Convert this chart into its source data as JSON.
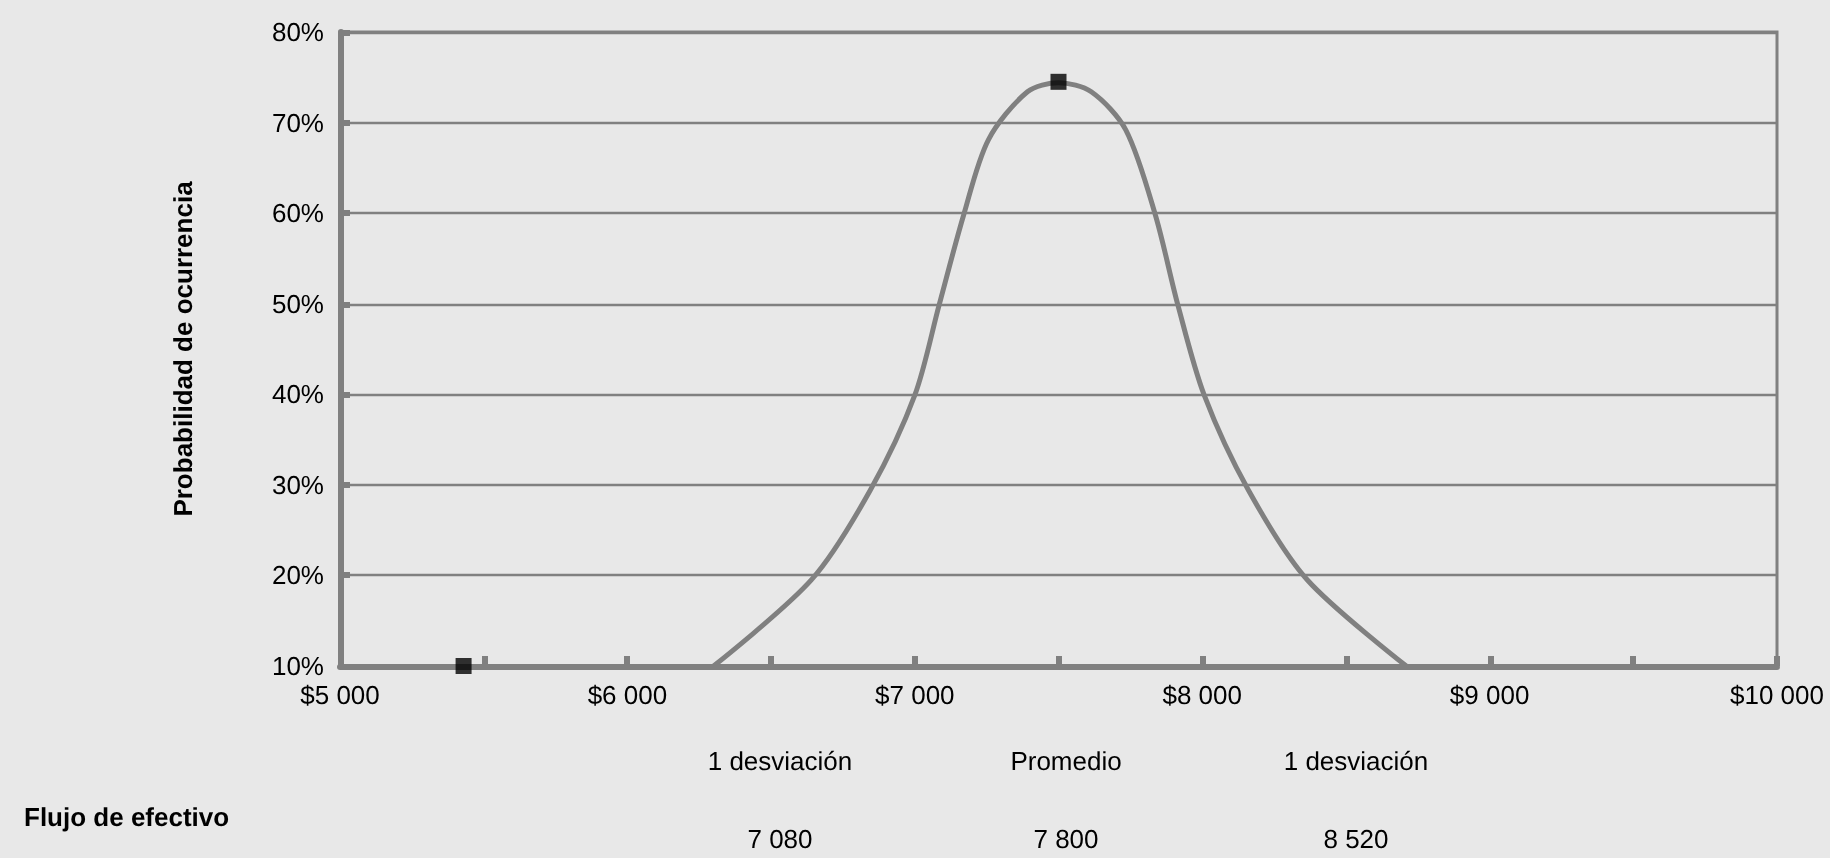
{
  "chart_data": {
    "type": "line",
    "ylabel": "Probabilidad de ocurrencia",
    "xlim": [
      5000,
      10000
    ],
    "xticks": [
      {
        "value": 5000,
        "label": "$5 000"
      },
      {
        "value": 5500,
        "label": null
      },
      {
        "value": 6000,
        "label": "$6 000"
      },
      {
        "value": 6500,
        "label": null
      },
      {
        "value": 7000,
        "label": "$7 000"
      },
      {
        "value": 7500,
        "label": null
      },
      {
        "value": 8000,
        "label": "$8 000"
      },
      {
        "value": 8500,
        "label": null
      },
      {
        "value": 9000,
        "label": "$9 000"
      },
      {
        "value": 9500,
        "label": null
      },
      {
        "value": 10000,
        "label": "$10 000"
      }
    ],
    "ylim": [
      10,
      80
    ],
    "yticks": [
      {
        "value": 10,
        "label": "10%"
      },
      {
        "value": 20,
        "label": "20%"
      },
      {
        "value": 30,
        "label": "30%"
      },
      {
        "value": 40,
        "label": "40%"
      },
      {
        "value": 50,
        "label": "50%"
      },
      {
        "value": 60,
        "label": "60%"
      },
      {
        "value": 70,
        "label": "70%"
      },
      {
        "value": 80,
        "label": "80%"
      }
    ],
    "grid": "y",
    "series": [
      {
        "color": "#808080",
        "marker": "none",
        "line_style": "solid",
        "x": [
          6300,
          6640,
          6845,
          7000,
          7085,
          7170,
          7256,
          7392,
          7500,
          7614,
          7734,
          7837,
          7915,
          8007,
          8161,
          8366,
          8710
        ],
        "values": [
          10,
          19.5,
          29.4,
          39.9,
          49.9,
          59.8,
          68.1,
          73.4,
          74.4,
          73.4,
          69.2,
          59.8,
          49.9,
          39.9,
          29.4,
          19.5,
          10
        ]
      },
      {
        "type": "scatter",
        "color": "#000000",
        "marker": "square",
        "x": [
          5430,
          7500
        ],
        "values": [
          10,
          74.5
        ]
      }
    ],
    "annotations": [
      "1 desviación",
      "Promedio",
      "1 desviación",
      "Flujo de efectivo",
      "7 080",
      "7 800",
      "8 520"
    ]
  }
}
